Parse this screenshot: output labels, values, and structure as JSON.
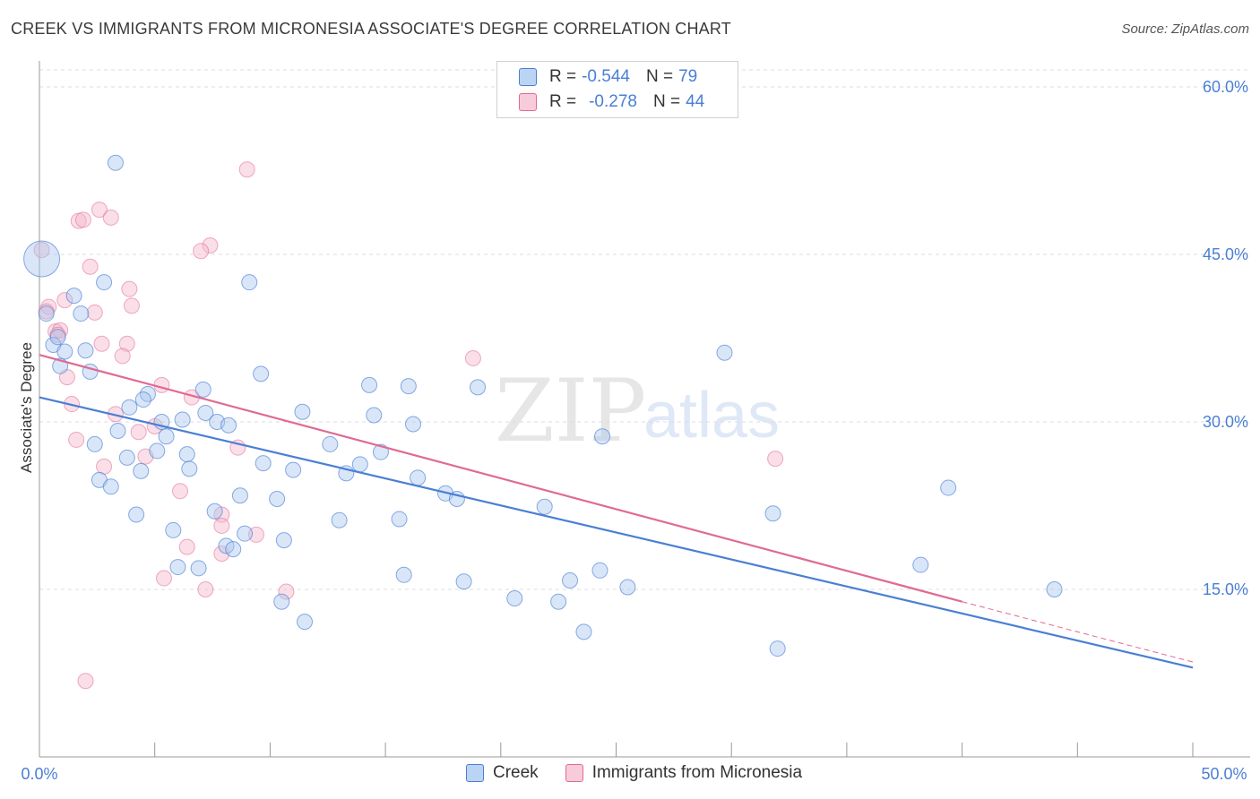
{
  "title": "CREEK VS IMMIGRANTS FROM MICRONESIA ASSOCIATE'S DEGREE CORRELATION CHART",
  "source": "Source: ZipAtlas.com",
  "watermark": {
    "part1": "ZIP",
    "part2": "atlas"
  },
  "legend": {
    "series1": {
      "r_label": "R =",
      "r_value": "-0.544",
      "n_label": "N =",
      "n_value": "79"
    },
    "series2": {
      "r_label": "R =",
      "r_value": "-0.278",
      "n_label": "N =",
      "n_value": "44"
    }
  },
  "colors": {
    "creek": "#4a7fd4",
    "micronesia": "#e06a93",
    "creek_fill": "#aac8f0",
    "micronesia_fill": "#f5b8cc"
  },
  "chart_data": {
    "type": "scatter",
    "title": "CREEK VS IMMIGRANTS FROM MICRONESIA ASSOCIATE'S DEGREE CORRELATION CHART",
    "xlabel": "",
    "ylabel": "Associate's Degree",
    "xlim": [
      0,
      50
    ],
    "ylim": [
      0,
      63
    ],
    "x_tick_labels": [
      "0.0%",
      "50.0%"
    ],
    "y_ticks": [
      15,
      30,
      45,
      60
    ],
    "y_tick_labels": [
      "15.0%",
      "30.0%",
      "45.0%",
      "60.0%"
    ],
    "series": [
      {
        "name": "Creek",
        "trend": {
          "x0": 0,
          "y0": 32.2,
          "x1": 50,
          "y1": 8.0
        },
        "points": [
          [
            0.1,
            44.6
          ],
          [
            3.3,
            53.2
          ],
          [
            0.3,
            39.7
          ],
          [
            1.5,
            41.3
          ],
          [
            1.8,
            39.7
          ],
          [
            2.8,
            42.5
          ],
          [
            0.6,
            36.9
          ],
          [
            0.8,
            37.6
          ],
          [
            1.1,
            36.3
          ],
          [
            2.0,
            36.4
          ],
          [
            0.9,
            35.0
          ],
          [
            2.2,
            34.5
          ],
          [
            4.7,
            32.5
          ],
          [
            4.5,
            32.0
          ],
          [
            3.9,
            31.3
          ],
          [
            5.3,
            30.0
          ],
          [
            3.4,
            29.2
          ],
          [
            2.4,
            28.0
          ],
          [
            5.1,
            27.4
          ],
          [
            6.4,
            27.1
          ],
          [
            3.8,
            26.8
          ],
          [
            4.4,
            25.6
          ],
          [
            6.5,
            25.8
          ],
          [
            2.6,
            24.8
          ],
          [
            3.1,
            24.2
          ],
          [
            7.1,
            32.9
          ],
          [
            7.2,
            30.8
          ],
          [
            7.7,
            30.0
          ],
          [
            6.2,
            30.2
          ],
          [
            5.5,
            28.7
          ],
          [
            8.2,
            29.7
          ],
          [
            9.6,
            34.3
          ],
          [
            9.7,
            26.3
          ],
          [
            10.3,
            23.1
          ],
          [
            8.7,
            23.4
          ],
          [
            7.6,
            22.0
          ],
          [
            4.2,
            21.7
          ],
          [
            5.8,
            20.3
          ],
          [
            8.9,
            20.0
          ],
          [
            11.0,
            25.7
          ],
          [
            11.4,
            30.9
          ],
          [
            12.6,
            28.0
          ],
          [
            13.0,
            21.2
          ],
          [
            13.3,
            25.4
          ],
          [
            13.9,
            26.2
          ],
          [
            14.3,
            33.3
          ],
          [
            14.8,
            27.3
          ],
          [
            14.5,
            30.6
          ],
          [
            15.6,
            21.3
          ],
          [
            16.0,
            33.2
          ],
          [
            16.2,
            29.8
          ],
          [
            16.4,
            25.0
          ],
          [
            17.6,
            23.6
          ],
          [
            18.1,
            23.1
          ],
          [
            10.6,
            19.4
          ],
          [
            8.1,
            18.9
          ],
          [
            8.4,
            18.6
          ],
          [
            6.0,
            17.0
          ],
          [
            6.9,
            16.9
          ],
          [
            10.5,
            13.9
          ],
          [
            11.5,
            12.1
          ],
          [
            15.8,
            16.3
          ],
          [
            18.4,
            15.7
          ],
          [
            20.6,
            14.2
          ],
          [
            22.5,
            13.9
          ],
          [
            21.9,
            22.4
          ],
          [
            23.0,
            15.8
          ],
          [
            23.6,
            11.2
          ],
          [
            24.3,
            16.7
          ],
          [
            25.5,
            15.2
          ],
          [
            24.4,
            28.7
          ],
          [
            29.7,
            36.2
          ],
          [
            31.8,
            21.8
          ],
          [
            32.0,
            9.7
          ],
          [
            38.2,
            17.2
          ],
          [
            39.4,
            24.1
          ],
          [
            44.0,
            15.0
          ],
          [
            19.0,
            33.1
          ],
          [
            9.1,
            42.5
          ]
        ]
      },
      {
        "name": "Immigrants from Micronesia",
        "trend": {
          "x0": 0,
          "y0": 36.0,
          "x1": 40.0,
          "y1": 13.9,
          "dash_x1": 50,
          "dash_y1": 8.5
        },
        "points": [
          [
            9.0,
            52.6
          ],
          [
            2.6,
            49.0
          ],
          [
            1.7,
            48.0
          ],
          [
            1.9,
            48.1
          ],
          [
            3.1,
            48.3
          ],
          [
            7.4,
            45.8
          ],
          [
            7.0,
            45.3
          ],
          [
            0.1,
            45.4
          ],
          [
            2.2,
            43.9
          ],
          [
            3.9,
            41.9
          ],
          [
            1.1,
            40.9
          ],
          [
            4.0,
            40.4
          ],
          [
            0.4,
            40.3
          ],
          [
            0.3,
            39.9
          ],
          [
            2.4,
            39.8
          ],
          [
            0.7,
            38.1
          ],
          [
            0.9,
            38.2
          ],
          [
            0.8,
            37.8
          ],
          [
            2.7,
            37.0
          ],
          [
            3.8,
            37.0
          ],
          [
            3.6,
            35.9
          ],
          [
            1.2,
            34.0
          ],
          [
            5.3,
            33.3
          ],
          [
            6.6,
            32.2
          ],
          [
            1.4,
            31.6
          ],
          [
            3.3,
            30.7
          ],
          [
            5.0,
            29.6
          ],
          [
            4.3,
            29.1
          ],
          [
            1.6,
            28.4
          ],
          [
            4.6,
            26.9
          ],
          [
            8.6,
            27.7
          ],
          [
            2.8,
            26.0
          ],
          [
            6.1,
            23.8
          ],
          [
            18.8,
            35.7
          ],
          [
            31.9,
            26.7
          ],
          [
            7.9,
            21.7
          ],
          [
            7.9,
            20.7
          ],
          [
            9.4,
            19.9
          ],
          [
            6.4,
            18.8
          ],
          [
            7.9,
            18.2
          ],
          [
            5.4,
            16.0
          ],
          [
            7.2,
            15.0
          ],
          [
            10.7,
            14.8
          ],
          [
            2.0,
            6.8
          ]
        ]
      }
    ]
  },
  "bottom_legend": {
    "item1": "Creek",
    "item2": "Immigrants from Micronesia"
  }
}
